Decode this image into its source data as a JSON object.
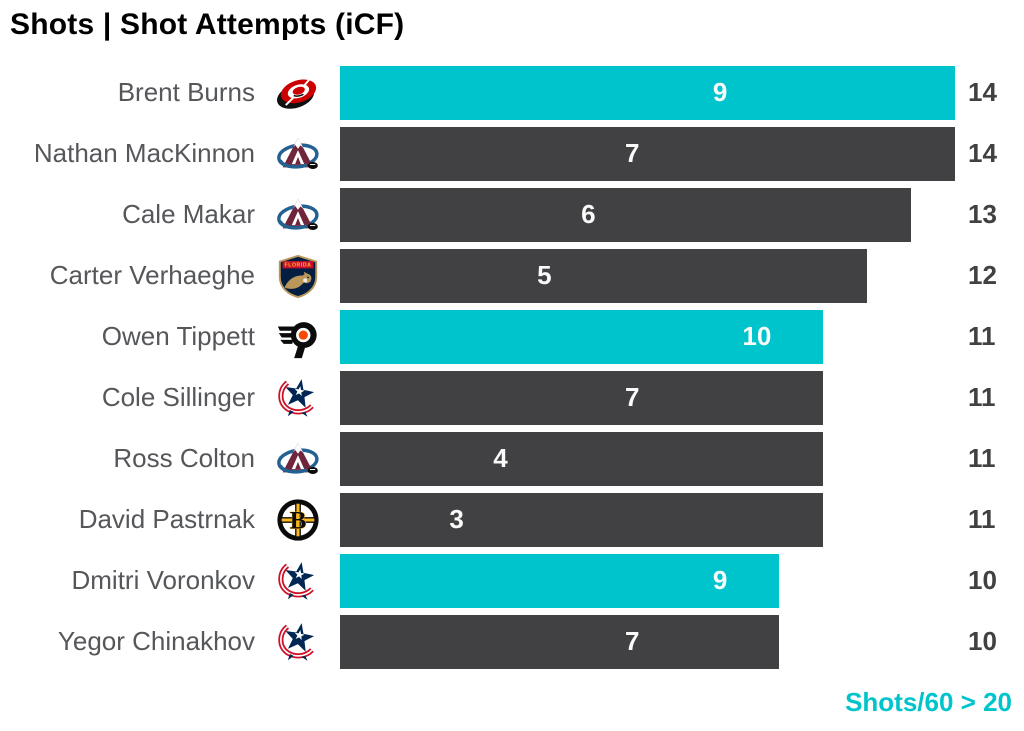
{
  "title": "Shots | Shot Attempts (iCF)",
  "footer": {
    "label": "Shots/60 > 20"
  },
  "colors": {
    "highlight_teal": "#00C4CC",
    "bar_dark": "#414042",
    "name_text": "#55575a",
    "value_text": "#414042",
    "bar_label_text": "#fafafa",
    "title_text": "#000000"
  },
  "chart_data": {
    "type": "bar",
    "orientation": "horizontal",
    "title": "Shots | Shot Attempts (iCF)",
    "x_max": 14,
    "grid": false,
    "legend": "none",
    "inner_value_meaning": "Shots",
    "bar_value_meaning": "Shot Attempts (iCF)",
    "highlight_rule": "Shots/60 > 20",
    "players": [
      {
        "name": "Brent Burns",
        "team": "Carolina Hurricanes",
        "team_code": "CAR",
        "shots": 9,
        "attempts": 14,
        "highlighted": true
      },
      {
        "name": "Nathan MacKinnon",
        "team": "Colorado Avalanche",
        "team_code": "COL",
        "shots": 7,
        "attempts": 14,
        "highlighted": false
      },
      {
        "name": "Cale Makar",
        "team": "Colorado Avalanche",
        "team_code": "COL",
        "shots": 6,
        "attempts": 13,
        "highlighted": false
      },
      {
        "name": "Carter Verhaeghe",
        "team": "Florida Panthers",
        "team_code": "FLA",
        "shots": 5,
        "attempts": 12,
        "highlighted": false
      },
      {
        "name": "Owen Tippett",
        "team": "Philadelphia Flyers",
        "team_code": "PHI",
        "shots": 10,
        "attempts": 11,
        "highlighted": true
      },
      {
        "name": "Cole Sillinger",
        "team": "Columbus Blue Jackets",
        "team_code": "CBJ",
        "shots": 7,
        "attempts": 11,
        "highlighted": false
      },
      {
        "name": "Ross Colton",
        "team": "Colorado Avalanche",
        "team_code": "COL",
        "shots": 4,
        "attempts": 11,
        "highlighted": false
      },
      {
        "name": "David Pastrnak",
        "team": "Boston Bruins",
        "team_code": "BOS",
        "shots": 3,
        "attempts": 11,
        "highlighted": false
      },
      {
        "name": "Dmitri Voronkov",
        "team": "Columbus Blue Jackets",
        "team_code": "CBJ",
        "shots": 9,
        "attempts": 10,
        "highlighted": true
      },
      {
        "name": "Yegor Chinakhov",
        "team": "Columbus Blue Jackets",
        "team_code": "CBJ",
        "shots": 7,
        "attempts": 10,
        "highlighted": false
      }
    ]
  }
}
